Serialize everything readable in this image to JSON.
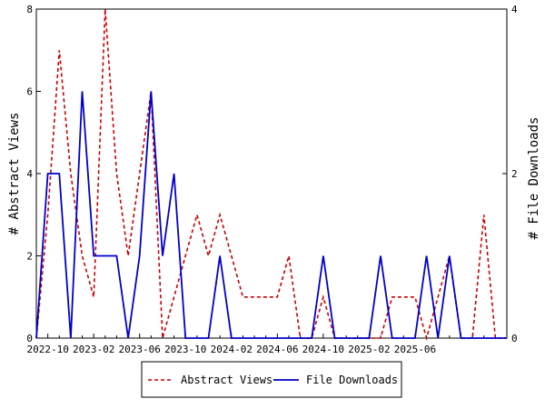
{
  "chart_data": {
    "type": "line",
    "x_start": "2022-09",
    "x_labels": [
      "2022-10",
      "2023-02",
      "2023-06",
      "2023-10",
      "2024-02",
      "2024-06",
      "2024-10",
      "2025-02",
      "2025-06"
    ],
    "series": [
      {
        "name": "Abstract Views",
        "axis": "left",
        "color": "#cc0000",
        "dash": true,
        "values": [
          0,
          3,
          7,
          4,
          2,
          1,
          8,
          4,
          2,
          4,
          6,
          0,
          1,
          2,
          3,
          2,
          3,
          2,
          1,
          1,
          1,
          1,
          2,
          0,
          0,
          1,
          0,
          0,
          0,
          0,
          0,
          1,
          1,
          1,
          0,
          1,
          2,
          0,
          0,
          3,
          0,
          0
        ]
      },
      {
        "name": "File Downloads",
        "axis": "right",
        "color": "#0000cc",
        "dash": false,
        "values": [
          0,
          2,
          2,
          0,
          3,
          1,
          1,
          1,
          0,
          1,
          3,
          1,
          2,
          0,
          0,
          0,
          1,
          0,
          0,
          0,
          0,
          0,
          0,
          0,
          0,
          1,
          0,
          0,
          0,
          0,
          1,
          0,
          0,
          0,
          1,
          0,
          1,
          0,
          0,
          0,
          0,
          0
        ]
      }
    ],
    "ylabel_left": "# Abstract Views",
    "ylabel_right": "# File Downloads",
    "ylim_left": [
      0,
      8
    ],
    "yticks_left": [
      0,
      2,
      4,
      6,
      8
    ],
    "ylim_right": [
      0,
      4
    ],
    "yticks_right": [
      0,
      2,
      4
    ],
    "legend_position": "bottom"
  }
}
